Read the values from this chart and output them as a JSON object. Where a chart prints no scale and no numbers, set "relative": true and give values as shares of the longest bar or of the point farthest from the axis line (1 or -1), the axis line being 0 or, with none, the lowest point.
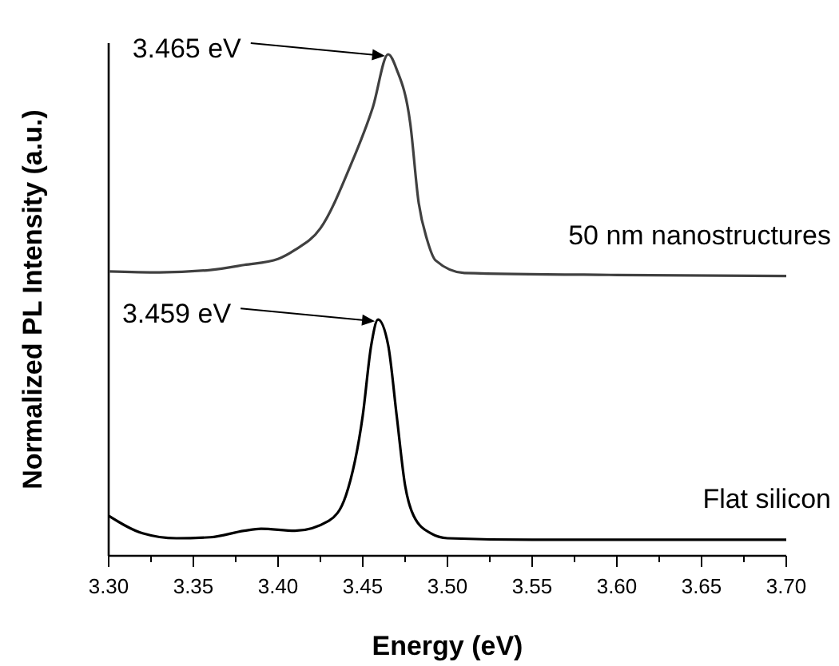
{
  "chart_data": {
    "type": "line",
    "relative": true,
    "xlabel": "Energy (eV)",
    "ylabel": "Normalized PL Intensity (a.u.)",
    "xlim": [
      3.3,
      3.7
    ],
    "xticks": [
      {
        "value": 3.3,
        "label": "3.30"
      },
      {
        "value": 3.325,
        "label": null
      },
      {
        "value": 3.35,
        "label": "3.35"
      },
      {
        "value": 3.375,
        "label": null
      },
      {
        "value": 3.4,
        "label": "3.40"
      },
      {
        "value": 3.425,
        "label": null
      },
      {
        "value": 3.45,
        "label": "3.45"
      },
      {
        "value": 3.475,
        "label": null
      },
      {
        "value": 3.5,
        "label": "3.50"
      },
      {
        "value": 3.525,
        "label": null
      },
      {
        "value": 3.55,
        "label": "3.55"
      },
      {
        "value": 3.575,
        "label": null
      },
      {
        "value": 3.6,
        "label": "3.60"
      },
      {
        "value": 3.625,
        "label": null
      },
      {
        "value": 3.65,
        "label": "3.65"
      },
      {
        "value": 3.675,
        "label": null
      },
      {
        "value": 3.7,
        "label": "3.70"
      }
    ],
    "series": [
      {
        "name": "50 nm nanostructures",
        "color": "#404040",
        "x": [
          3.3,
          3.33,
          3.36,
          3.38,
          3.4,
          3.41,
          3.425,
          3.443,
          3.456,
          3.465,
          3.47,
          3.478,
          3.483,
          3.488,
          3.493,
          3.51,
          3.6,
          3.7
        ],
        "values": [
          0.567,
          0.565,
          0.57,
          0.58,
          0.592,
          0.61,
          0.653,
          0.78,
          0.895,
          1.0,
          0.97,
          0.863,
          0.704,
          0.63,
          0.589,
          0.564,
          0.56,
          0.558
        ]
      },
      {
        "name": "Flat silicon",
        "color": "#000000",
        "x": [
          3.3,
          3.32,
          3.34,
          3.36,
          3.38,
          3.39,
          3.41,
          3.43,
          3.44,
          3.45,
          3.455,
          3.459,
          3.465,
          3.47,
          3.475,
          3.48,
          3.49,
          3.5,
          3.55,
          3.7
        ],
        "values": [
          0.08,
          0.045,
          0.035,
          0.037,
          0.05,
          0.054,
          0.05,
          0.07,
          0.12,
          0.28,
          0.42,
          0.471,
          0.42,
          0.28,
          0.14,
          0.08,
          0.045,
          0.035,
          0.032,
          0.032
        ]
      }
    ],
    "annotations": [
      "3.465 eV",
      "3.459 eV"
    ],
    "line_style": "solid",
    "marker": "none"
  }
}
